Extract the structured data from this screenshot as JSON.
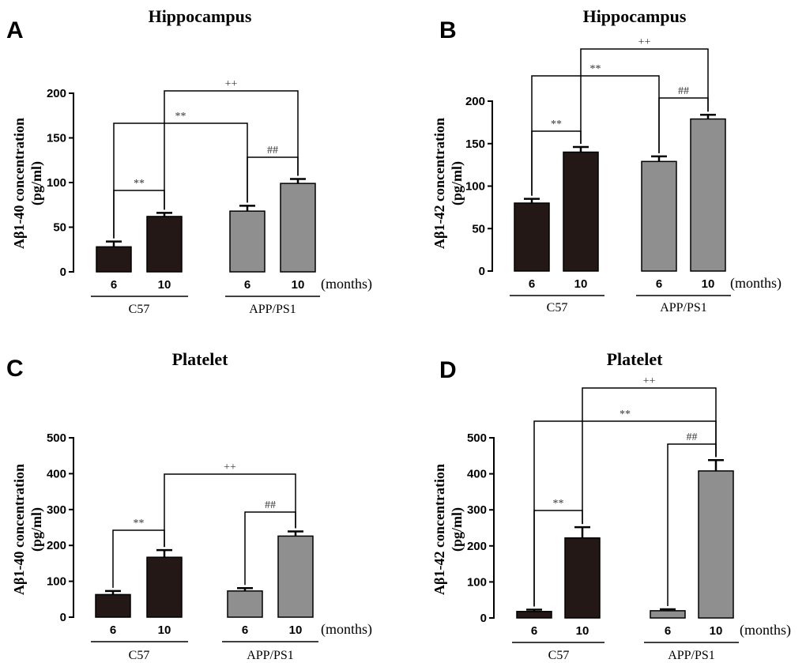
{
  "colors": {
    "c57": "#231815",
    "app": "#8f8f8f"
  },
  "x_unit": "(months)",
  "chart_data": [
    {
      "panel": "A",
      "type": "bar",
      "title": "Hippocampus",
      "ylabel_line1": "Aβ1-40 concentration",
      "ylabel_line2": "(pg/ml)",
      "ylim": [
        0,
        200
      ],
      "yticks": [
        0,
        50,
        100,
        150,
        200
      ],
      "categories": [
        "6",
        "10",
        "6",
        "10"
      ],
      "groups": [
        {
          "name": "C57"
        },
        {
          "name": "APP/PS1"
        }
      ],
      "values": [
        28,
        62,
        68,
        99
      ],
      "errors": [
        6,
        4,
        6,
        5
      ],
      "brackets": [
        {
          "a": 0,
          "b": 1,
          "label": "**"
        },
        {
          "a": 2,
          "b": 3,
          "label": "##"
        },
        {
          "a": 0,
          "b": 2,
          "label": "**"
        },
        {
          "a": 1,
          "b": 3,
          "label": "++"
        }
      ]
    },
    {
      "panel": "B",
      "type": "bar",
      "title": "Hippocampus",
      "ylabel_line1": "Aβ1-42 concentration",
      "ylabel_line2": "(pg/ml)",
      "ylim": [
        0,
        200
      ],
      "yticks": [
        0,
        50,
        100,
        150,
        200
      ],
      "categories": [
        "6",
        "10",
        "6",
        "10"
      ],
      "groups": [
        {
          "name": "C57"
        },
        {
          "name": "APP/PS1"
        }
      ],
      "values": [
        80,
        140,
        129,
        179
      ],
      "errors": [
        5,
        6,
        6,
        5
      ],
      "brackets": [
        {
          "a": 0,
          "b": 1,
          "label": "**"
        },
        {
          "a": 2,
          "b": 3,
          "label": "##"
        },
        {
          "a": 0,
          "b": 2,
          "label": "**"
        },
        {
          "a": 1,
          "b": 3,
          "label": "++"
        }
      ]
    },
    {
      "panel": "C",
      "type": "bar",
      "title": "Platelet",
      "ylabel_line1": "Aβ1-40 concentration",
      "ylabel_line2": "(pg/ml)",
      "ylim": [
        0,
        500
      ],
      "yticks": [
        0,
        100,
        200,
        300,
        400,
        500
      ],
      "categories": [
        "6",
        "10",
        "6",
        "10"
      ],
      "groups": [
        {
          "name": "C57"
        },
        {
          "name": "APP/PS1"
        }
      ],
      "values": [
        63,
        167,
        73,
        226
      ],
      "errors": [
        10,
        20,
        8,
        13
      ],
      "brackets": [
        {
          "a": 0,
          "b": 1,
          "label": "**"
        },
        {
          "a": 2,
          "b": 3,
          "label": "##"
        },
        {
          "a": 1,
          "b": 3,
          "label": "++"
        }
      ]
    },
    {
      "panel": "D",
      "type": "bar",
      "title": "Platelet",
      "ylabel_line1": "Aβ1-42 concentration",
      "ylabel_line2": "(pg/ml)",
      "ylim": [
        0,
        500
      ],
      "yticks": [
        0,
        100,
        200,
        300,
        400,
        500
      ],
      "categories": [
        "6",
        "10",
        "6",
        "10"
      ],
      "groups": [
        {
          "name": "C57"
        },
        {
          "name": "APP/PS1"
        }
      ],
      "values": [
        18,
        222,
        20,
        408
      ],
      "errors": [
        5,
        30,
        4,
        30
      ],
      "brackets": [
        {
          "a": 0,
          "b": 1,
          "label": "**"
        },
        {
          "a": 2,
          "b": 3,
          "label": "##"
        },
        {
          "a": 0,
          "b": 3,
          "label": "**"
        },
        {
          "a": 1,
          "b": 3,
          "label": "++"
        }
      ]
    }
  ]
}
